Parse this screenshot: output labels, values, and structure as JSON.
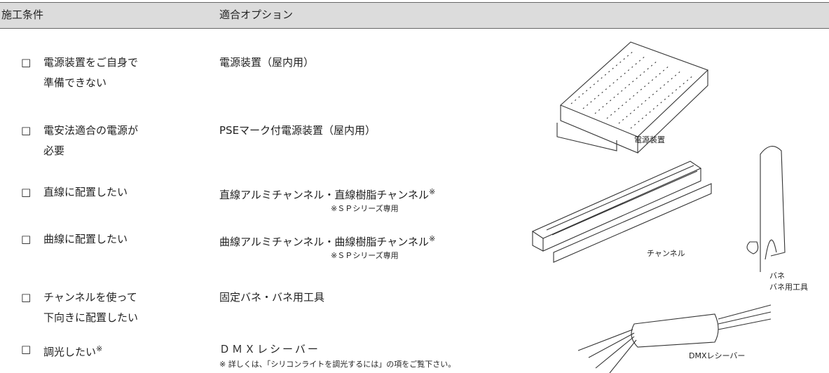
{
  "header": {
    "condition": "施工条件",
    "option": "適合オプション"
  },
  "rows": [
    {
      "checkbox": "□",
      "condition": [
        "電源装置をご自身で",
        "準備できない"
      ],
      "option": "電源装置（屋内用）"
    },
    {
      "checkbox": "□",
      "condition": [
        "電安法適合の電源が",
        "必要"
      ],
      "option": "PSEマーク付電源装置（屋内用）"
    },
    {
      "checkbox": "□",
      "condition": [
        "直線に配置したい"
      ],
      "option": "直線アルミチャンネル・直線樹脂チャンネル",
      "option_mark": "※",
      "note": "※ＳＰシリーズ専用"
    },
    {
      "checkbox": "□",
      "condition": [
        "曲線に配置したい"
      ],
      "option": "曲線アルミチャンネル・曲線樹脂チャンネル",
      "option_mark": "※",
      "note": "※ＳＰシリーズ専用"
    },
    {
      "checkbox": "□",
      "condition": [
        "チャンネルを使って",
        "下向きに配置したい"
      ],
      "option": "固定バネ・バネ用工具"
    },
    {
      "checkbox": "□",
      "condition": [
        "調光したい"
      ],
      "condition_mark": "※",
      "option": "ＤＭＸレシーバー",
      "note": "※ 詳しくは、「シリコンライトを調光するには」の項をご覧下さい。"
    }
  ],
  "figures": {
    "power_supply": "電源装置",
    "channel": "チャンネル",
    "spring": "バネ",
    "tool": "バネ用工具",
    "dmx": "DMXレシーバー"
  }
}
